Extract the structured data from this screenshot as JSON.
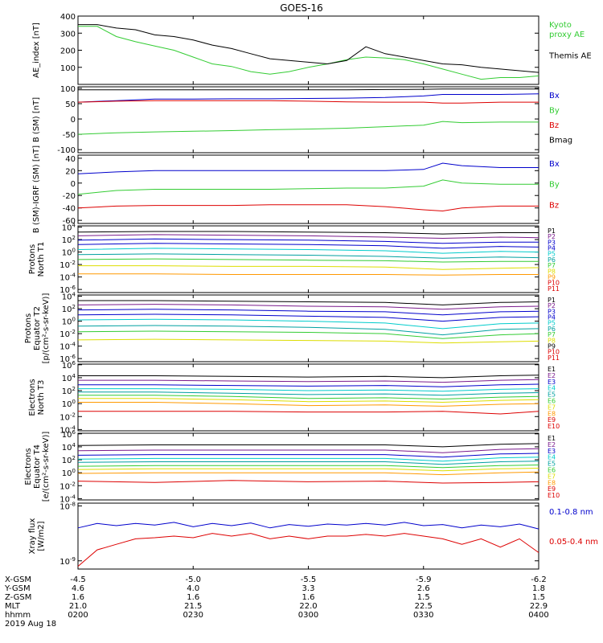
{
  "title": "GOES-16",
  "colors": {
    "black": "#000000",
    "blue": "#0000cc",
    "green": "#33cc33",
    "red": "#dd0000",
    "purple": "#7a1a8c",
    "cyan": "#00cccc",
    "teal": "#00a0a0",
    "yellow": "#dddd00",
    "orange": "#ff9900"
  },
  "chart_data": [
    {
      "type": "line",
      "ylabel": "AE_index [nT]",
      "ylim": [
        0,
        400
      ],
      "yticks": [
        100,
        200,
        300,
        400
      ],
      "yticklabels": [
        "100",
        "200",
        "300",
        "400"
      ],
      "x": [
        0,
        5,
        10,
        15,
        20,
        25,
        30,
        35,
        40,
        45,
        50,
        55,
        60,
        65,
        70,
        75,
        80,
        85,
        90,
        95,
        100,
        105,
        110,
        115,
        120
      ],
      "series": [
        {
          "name": "Kyoto proxy AE",
          "label_lines": [
            "Kyoto",
            "proxy AE"
          ],
          "color": "green",
          "values": [
            340,
            340,
            280,
            250,
            225,
            200,
            160,
            120,
            105,
            75,
            60,
            75,
            100,
            120,
            145,
            160,
            155,
            145,
            120,
            90,
            60,
            30,
            40,
            40,
            50
          ]
        },
        {
          "name": "Themis AE",
          "label_lines": [
            "Themis AE"
          ],
          "color": "black",
          "values": [
            350,
            350,
            330,
            320,
            290,
            280,
            260,
            230,
            210,
            180,
            150,
            140,
            130,
            120,
            140,
            220,
            180,
            160,
            140,
            120,
            115,
            100,
            90,
            80,
            70
          ]
        }
      ]
    },
    {
      "type": "line",
      "ylabel": "B (SM) [nT]",
      "ylim": [
        -110,
        105
      ],
      "yticks": [
        -100,
        -50,
        0,
        50,
        100
      ],
      "yticklabels": [
        "-100",
        "-50",
        "0",
        "50",
        "100"
      ],
      "x": [
        0,
        10,
        20,
        30,
        40,
        50,
        60,
        70,
        80,
        90,
        95,
        100,
        110,
        120
      ],
      "series": [
        {
          "name": "Bx",
          "color": "blue",
          "values": [
            55,
            60,
            65,
            65,
            66,
            66,
            67,
            68,
            70,
            75,
            80,
            80,
            80,
            82
          ]
        },
        {
          "name": "By",
          "color": "green",
          "values": [
            -50,
            -45,
            -42,
            -40,
            -38,
            -35,
            -33,
            -30,
            -25,
            -20,
            -8,
            -12,
            -10,
            -10
          ]
        },
        {
          "name": "Bz",
          "color": "red",
          "values": [
            55,
            58,
            60,
            60,
            60,
            60,
            58,
            56,
            55,
            55,
            52,
            52,
            55,
            55
          ]
        },
        {
          "name": "Bmag",
          "color": "black",
          "values": [
            95,
            95,
            95,
            95,
            95,
            95,
            95,
            95,
            96,
            97,
            98,
            98,
            98,
            98
          ]
        }
      ]
    },
    {
      "type": "line",
      "ylabel": "B (SM)-IGRF (SM) [nT]",
      "ylim": [
        -65,
        45
      ],
      "yticks": [
        -60,
        -40,
        -20,
        0,
        20,
        40
      ],
      "yticklabels": [
        "-60",
        "-40",
        "-20",
        "0",
        "20",
        "40"
      ],
      "x": [
        0,
        10,
        20,
        30,
        40,
        50,
        60,
        70,
        80,
        90,
        95,
        100,
        110,
        120
      ],
      "series": [
        {
          "name": "Bx",
          "color": "blue",
          "values": [
            15,
            18,
            20,
            20,
            20,
            20,
            20,
            20,
            20,
            22,
            32,
            28,
            25,
            25
          ]
        },
        {
          "name": "By",
          "color": "green",
          "values": [
            -18,
            -12,
            -10,
            -10,
            -10,
            -10,
            -9,
            -8,
            -8,
            -5,
            5,
            0,
            -2,
            -2
          ]
        },
        {
          "name": "Bz",
          "color": "red",
          "values": [
            -40,
            -37,
            -36,
            -36,
            -36,
            -35,
            -35,
            -35,
            -38,
            -43,
            -45,
            -40,
            -37,
            -37
          ]
        }
      ]
    },
    {
      "type": "line",
      "ylabel_lines": [
        "Protons",
        "North T1"
      ],
      "log_range": [
        -6.5,
        4.2
      ],
      "yticks": [
        4,
        2,
        0,
        -2,
        -4,
        -6
      ],
      "yticklabels": [
        "10^4",
        "10^2",
        "10^0",
        "10^-2",
        "10^-4",
        "10^-6"
      ],
      "x": [
        0,
        20,
        40,
        60,
        80,
        95,
        110,
        120
      ],
      "series": [
        {
          "name": "P1",
          "color": "black",
          "values": [
            3.2,
            3.3,
            3.3,
            3.2,
            3.1,
            2.9,
            3.1,
            3.1
          ]
        },
        {
          "name": "P2",
          "color": "purple",
          "values": [
            2.6,
            2.8,
            2.7,
            2.6,
            2.4,
            2.2,
            2.4,
            2.3
          ]
        },
        {
          "name": "P3",
          "color": "blue",
          "values": [
            1.9,
            2.1,
            2.0,
            1.9,
            1.7,
            1.4,
            1.6,
            1.6
          ]
        },
        {
          "name": "P4",
          "color": "blue",
          "values": [
            1.2,
            1.4,
            1.3,
            1.2,
            1.0,
            0.6,
            0.9,
            0.8
          ]
        },
        {
          "name": "P5",
          "color": "cyan",
          "values": [
            0.4,
            0.6,
            0.5,
            0.4,
            0.2,
            -0.2,
            0.1,
            0.0
          ]
        },
        {
          "name": "P6",
          "color": "teal",
          "values": [
            -0.4,
            -0.3,
            -0.4,
            -0.5,
            -0.7,
            -1.0,
            -0.8,
            -0.9
          ]
        },
        {
          "name": "P7",
          "color": "green",
          "values": [
            -1.2,
            -1.1,
            -1.2,
            -1.3,
            -1.4,
            -1.6,
            -1.5,
            -1.5
          ]
        },
        {
          "name": "P8",
          "color": "yellow",
          "values": [
            -2.2,
            -2.2,
            -2.3,
            -2.3,
            -2.4,
            -2.8,
            -2.6,
            -2.5
          ]
        },
        {
          "name": "P9",
          "color": "orange",
          "values": [
            -3.5,
            -3.5,
            -3.6,
            -3.6,
            -3.6,
            -3.7,
            -3.6,
            -3.6
          ]
        }
      ],
      "legend": [
        "P1",
        "P2",
        "P3",
        "P4",
        "P5",
        "P6",
        "P7",
        "P8",
        "P9",
        "P10",
        "P11"
      ]
    },
    {
      "type": "line",
      "ylabel_lines": [
        "Protons",
        "Equator T2",
        "[p/(cm²-s-sr-keV)]"
      ],
      "log_range": [
        -6.5,
        4.2
      ],
      "yticks": [
        4,
        2,
        0,
        -2,
        -4,
        -6
      ],
      "yticklabels": [
        "10^4",
        "10^2",
        "10^0",
        "10^-2",
        "10^-4",
        "10^-6"
      ],
      "x": [
        0,
        20,
        40,
        60,
        80,
        95,
        110,
        120
      ],
      "series": [
        {
          "name": "P1",
          "color": "black",
          "values": [
            3.3,
            3.3,
            3.2,
            3.1,
            3.0,
            2.6,
            3.0,
            3.1
          ]
        },
        {
          "name": "P2",
          "color": "purple",
          "values": [
            2.6,
            2.7,
            2.6,
            2.4,
            2.3,
            1.9,
            2.3,
            2.4
          ]
        },
        {
          "name": "P3",
          "color": "blue",
          "values": [
            1.8,
            1.9,
            1.8,
            1.6,
            1.5,
            1.0,
            1.5,
            1.6
          ]
        },
        {
          "name": "P4",
          "color": "blue",
          "values": [
            1.0,
            1.1,
            1.0,
            0.8,
            0.6,
            0.0,
            0.6,
            0.7
          ]
        },
        {
          "name": "P5",
          "color": "cyan",
          "values": [
            0.2,
            0.3,
            0.2,
            0.0,
            -0.3,
            -1.2,
            -0.4,
            -0.3
          ]
        },
        {
          "name": "P6",
          "color": "teal",
          "values": [
            -0.8,
            -0.7,
            -0.8,
            -1.0,
            -1.3,
            -2.2,
            -1.3,
            -1.2
          ]
        },
        {
          "name": "P7",
          "color": "green",
          "values": [
            -1.7,
            -1.6,
            -1.7,
            -1.8,
            -2.0,
            -2.8,
            -2.2,
            -2.0
          ]
        },
        {
          "name": "P8",
          "color": "yellow",
          "values": [
            -3.0,
            -2.9,
            -3.0,
            -3.1,
            -3.2,
            -3.5,
            -3.3,
            -3.2
          ]
        }
      ],
      "legend": [
        "P1",
        "P2",
        "P3",
        "P4",
        "P5",
        "P6",
        "P7",
        "P8",
        "P9",
        "P10",
        "P11"
      ]
    },
    {
      "type": "line",
      "ylabel_lines": [
        "Electrons",
        "North T3"
      ],
      "log_range": [
        -4.2,
        6.1
      ],
      "yticks": [
        6,
        4,
        2,
        0,
        -2,
        -4
      ],
      "yticklabels": [
        "10^6",
        "10^4",
        "10^2",
        "10^0",
        "10^-2",
        "10^-4"
      ],
      "x": [
        0,
        20,
        40,
        60,
        80,
        95,
        110,
        120
      ],
      "series": [
        {
          "name": "E1",
          "color": "black",
          "values": [
            4.3,
            4.3,
            4.2,
            4.1,
            4.2,
            4.0,
            4.3,
            4.4
          ]
        },
        {
          "name": "E2",
          "color": "purple",
          "values": [
            3.6,
            3.6,
            3.5,
            3.4,
            3.5,
            3.3,
            3.6,
            3.7
          ]
        },
        {
          "name": "E3",
          "color": "blue",
          "values": [
            2.9,
            2.9,
            2.8,
            2.7,
            2.8,
            2.6,
            2.9,
            3.0
          ]
        },
        {
          "name": "E4",
          "color": "cyan",
          "values": [
            2.3,
            2.3,
            2.2,
            2.0,
            2.1,
            1.9,
            2.2,
            2.3
          ]
        },
        {
          "name": "E5",
          "color": "teal",
          "values": [
            1.8,
            1.8,
            1.6,
            1.4,
            1.5,
            1.3,
            1.6,
            1.7
          ]
        },
        {
          "name": "E6",
          "color": "green",
          "values": [
            1.3,
            1.3,
            1.1,
            0.8,
            0.9,
            0.7,
            1.0,
            1.1
          ]
        },
        {
          "name": "E7",
          "color": "yellow",
          "values": [
            0.8,
            0.8,
            0.6,
            0.3,
            0.4,
            0.2,
            0.5,
            0.6
          ]
        },
        {
          "name": "E8",
          "color": "orange",
          "values": [
            0.2,
            0.2,
            0.0,
            -0.3,
            -0.2,
            -0.4,
            -0.1,
            0.0
          ]
        },
        {
          "name": "E9",
          "color": "red",
          "values": [
            -1.2,
            -1.2,
            -1.2,
            -1.3,
            -1.3,
            -1.2,
            -1.6,
            -1.2
          ]
        }
      ],
      "legend": [
        "E1",
        "E2",
        "E3",
        "E4",
        "E5",
        "E6",
        "E7",
        "E8",
        "E9",
        "E10"
      ]
    },
    {
      "type": "line",
      "ylabel_lines": [
        "Electrons",
        "Equator T4",
        "[e/(cm²-s-sr-keV)]"
      ],
      "log_range": [
        -4.2,
        6.1
      ],
      "yticks": [
        6,
        4,
        2,
        0,
        -2,
        -4
      ],
      "yticklabels": [
        "10^6",
        "10^4",
        "10^2",
        "10^0",
        "10^-2",
        "10^-4"
      ],
      "x": [
        0,
        20,
        40,
        60,
        80,
        95,
        110,
        120
      ],
      "series": [
        {
          "name": "E1",
          "color": "black",
          "values": [
            4.2,
            4.3,
            4.3,
            4.3,
            4.3,
            4.0,
            4.4,
            4.5
          ]
        },
        {
          "name": "E2",
          "color": "purple",
          "values": [
            3.4,
            3.5,
            3.5,
            3.5,
            3.5,
            3.1,
            3.6,
            3.7
          ]
        },
        {
          "name": "E3",
          "color": "blue",
          "values": [
            2.7,
            2.8,
            2.8,
            2.8,
            2.8,
            2.4,
            2.9,
            3.0
          ]
        },
        {
          "name": "E4",
          "color": "cyan",
          "values": [
            2.1,
            2.2,
            2.2,
            2.2,
            2.2,
            1.8,
            2.3,
            2.4
          ]
        },
        {
          "name": "E5",
          "color": "teal",
          "values": [
            1.6,
            1.7,
            1.7,
            1.7,
            1.7,
            1.3,
            1.7,
            1.8
          ]
        },
        {
          "name": "E6",
          "color": "green",
          "values": [
            1.0,
            1.1,
            1.1,
            1.1,
            1.1,
            0.8,
            1.1,
            1.2
          ]
        },
        {
          "name": "E7",
          "color": "yellow",
          "values": [
            0.5,
            0.6,
            0.6,
            0.6,
            0.6,
            0.3,
            0.6,
            0.7
          ]
        },
        {
          "name": "E8",
          "color": "orange",
          "values": [
            -0.1,
            0.0,
            0.0,
            0.0,
            0.0,
            -0.3,
            0.0,
            0.1
          ]
        },
        {
          "name": "E9",
          "color": "red",
          "values": [
            -1.3,
            -1.5,
            -1.2,
            -1.4,
            -1.3,
            -1.6,
            -1.5,
            -1.4
          ]
        }
      ],
      "legend": [
        "E1",
        "E2",
        "E3",
        "E4",
        "E5",
        "E6",
        "E7",
        "E8",
        "E9",
        "E10"
      ]
    },
    {
      "type": "line",
      "ylabel_lines": [
        "Xray flux",
        "[W/m2]"
      ],
      "log_range": [
        -9.15,
        -7.95
      ],
      "yticks": [
        -8,
        -9
      ],
      "yticklabels": [
        "10^-8",
        "10^-9"
      ],
      "x": [
        0,
        5,
        10,
        15,
        20,
        25,
        30,
        35,
        40,
        45,
        50,
        55,
        60,
        65,
        70,
        75,
        80,
        85,
        90,
        95,
        100,
        105,
        110,
        115,
        120
      ],
      "series": [
        {
          "name": "0.1-0.8 nm",
          "color": "blue",
          "values": [
            -8.4,
            -8.32,
            -8.36,
            -8.32,
            -8.35,
            -8.3,
            -8.38,
            -8.32,
            -8.36,
            -8.31,
            -8.4,
            -8.34,
            -8.37,
            -8.33,
            -8.35,
            -8.32,
            -8.35,
            -8.3,
            -8.36,
            -8.34,
            -8.4,
            -8.35,
            -8.38,
            -8.33,
            -8.42
          ]
        },
        {
          "name": "0.05-0.4 nm",
          "color": "red",
          "values": [
            -9.1,
            -8.8,
            -8.7,
            -8.6,
            -8.58,
            -8.55,
            -8.58,
            -8.5,
            -8.55,
            -8.5,
            -8.6,
            -8.55,
            -8.6,
            -8.55,
            -8.55,
            -8.52,
            -8.55,
            -8.5,
            -8.55,
            -8.6,
            -8.7,
            -8.6,
            -8.75,
            -8.6,
            -8.85
          ]
        }
      ]
    }
  ],
  "xaxis": {
    "row_labels": [
      "X-GSM",
      "Y-GSM",
      "Z-GSM",
      "MLT",
      "hhmm",
      "2019 Aug 18"
    ],
    "ticks": [
      {
        "x": 0,
        "xgsm": "-4.5",
        "ygsm": "4.6",
        "zgsm": "1.6",
        "mlt": "21.0",
        "hhmm": "0200"
      },
      {
        "x": 30,
        "xgsm": "-5.0",
        "ygsm": "4.0",
        "zgsm": "1.6",
        "mlt": "21.5",
        "hhmm": "0230"
      },
      {
        "x": 60,
        "xgsm": "-5.5",
        "ygsm": "3.3",
        "zgsm": "1.6",
        "mlt": "22.0",
        "hhmm": "0300"
      },
      {
        "x": 90,
        "xgsm": "-5.9",
        "ygsm": "2.6",
        "zgsm": "1.5",
        "mlt": "22.5",
        "hhmm": "0330"
      },
      {
        "x": 120,
        "xgsm": "-6.2",
        "ygsm": "1.8",
        "zgsm": "1.5",
        "mlt": "22.9",
        "hhmm": "0400"
      }
    ]
  }
}
